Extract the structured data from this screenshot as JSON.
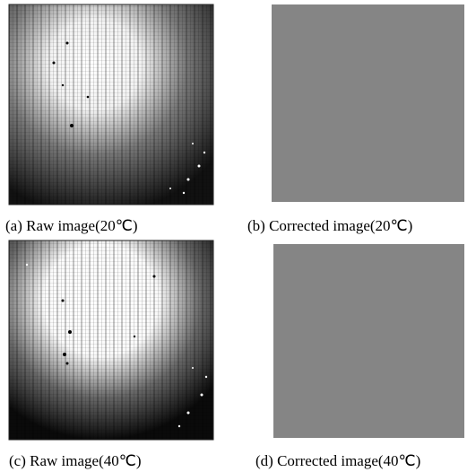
{
  "panels": [
    {
      "caption": "(a) Raw image(20℃)"
    },
    {
      "caption": "(b) Corrected image(20℃)"
    },
    {
      "caption": "(c) Raw image(40℃)"
    },
    {
      "caption": "(d) Corrected image(40℃)"
    }
  ]
}
